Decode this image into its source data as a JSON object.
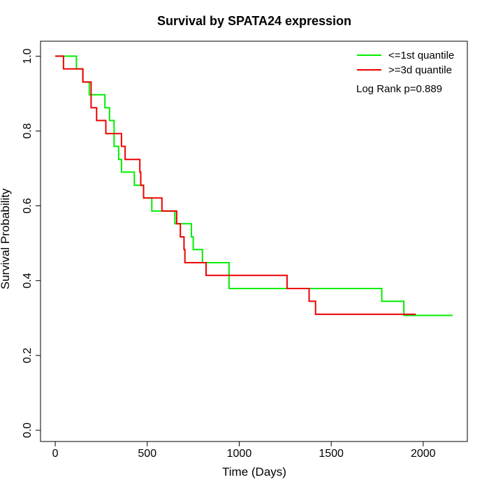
{
  "chart_data": {
    "type": "line",
    "title": "Survival by SPATA24 expression",
    "xlabel": "Time (Days)",
    "ylabel": "Survival Probability",
    "xlim": [
      -80,
      2240
    ],
    "ylim": [
      -0.03,
      1.04
    ],
    "xticks": [
      0,
      500,
      1000,
      1500,
      2000
    ],
    "xtick_labels": [
      "0",
      "500",
      "1000",
      "1500",
      "2000"
    ],
    "yticks": [
      0.0,
      0.2,
      0.4,
      0.6,
      0.8,
      1.0
    ],
    "ytick_labels": [
      "0.0",
      "0.2",
      "0.4",
      "0.6",
      "0.8",
      "1.0"
    ],
    "grid": false,
    "legend_position": "top-right",
    "annotation": "Log Rank p=0.889",
    "series": [
      {
        "name": "<=1st quantile",
        "color": "#00ee00",
        "step": true,
        "x": [
          0,
          115,
          150,
          185,
          270,
          295,
          320,
          345,
          360,
          430,
          480,
          525,
          650,
          740,
          750,
          765,
          800,
          945,
          975,
          1775,
          1895,
          2160
        ],
        "y": [
          1.0,
          0.966,
          0.931,
          0.897,
          0.862,
          0.828,
          0.759,
          0.724,
          0.69,
          0.655,
          0.621,
          0.586,
          0.552,
          0.517,
          0.483,
          0.483,
          0.448,
          0.379,
          0.379,
          0.345,
          0.307,
          0.307
        ]
      },
      {
        "name": ">=3d quantile",
        "color": "#ee0000",
        "step": true,
        "x": [
          0,
          45,
          150,
          195,
          225,
          275,
          360,
          380,
          460,
          465,
          480,
          525,
          580,
          660,
          680,
          700,
          705,
          820,
          1260,
          1380,
          1415,
          1960
        ],
        "y": [
          1.0,
          0.966,
          0.931,
          0.862,
          0.828,
          0.793,
          0.759,
          0.724,
          0.69,
          0.655,
          0.621,
          0.621,
          0.586,
          0.552,
          0.517,
          0.483,
          0.448,
          0.414,
          0.379,
          0.345,
          0.31,
          0.31
        ]
      }
    ]
  }
}
